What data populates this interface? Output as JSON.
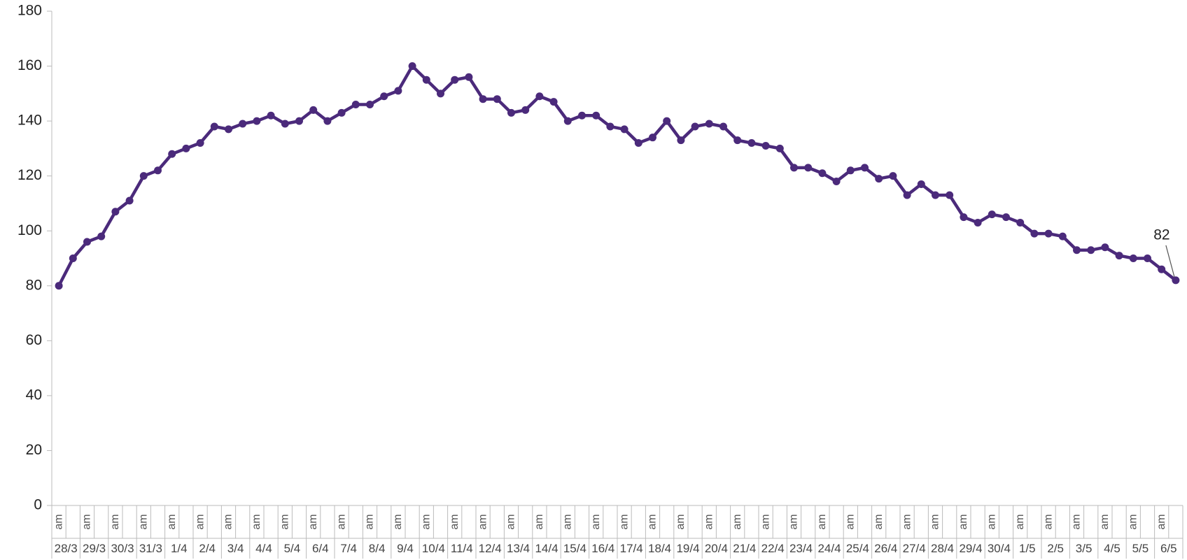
{
  "chart_data": {
    "type": "line",
    "categories": [
      "am",
      null,
      "am",
      null,
      "am",
      null,
      "am",
      null,
      "am",
      null,
      "am",
      null,
      "am",
      null,
      "am",
      null,
      "am",
      null,
      "am",
      null,
      "am",
      null,
      "am",
      null,
      "am",
      null,
      "am",
      null,
      "am",
      null,
      "am",
      null,
      "am",
      null,
      "am",
      null,
      "am",
      null,
      "am",
      null,
      "am",
      null,
      "am",
      null,
      "am",
      null,
      "am",
      null,
      "am",
      null,
      "am",
      null,
      "am",
      null,
      "am",
      null,
      "am",
      null,
      "am",
      null,
      "am",
      null,
      "am",
      null,
      "am",
      null,
      "am",
      null,
      "am",
      null,
      "am",
      null,
      "am",
      null,
      "am",
      null,
      "am",
      null,
      "am",
      null
    ],
    "category_groups": [
      "28/3",
      "29/3",
      "30/3",
      "31/3",
      "1/4",
      "2/4",
      "3/4",
      "4/4",
      "5/4",
      "6/4",
      "7/4",
      "8/4",
      "9/4",
      "10/4",
      "11/4",
      "12/4",
      "13/4",
      "14/4",
      "15/4",
      "16/4",
      "17/4",
      "18/4",
      "19/4",
      "20/4",
      "21/4",
      "22/4",
      "23/4",
      "24/4",
      "25/4",
      "26/4",
      "27/4",
      "28/4",
      "29/4",
      "30/4",
      "1/5",
      "2/5",
      "3/5",
      "4/5",
      "5/5",
      "6/5"
    ],
    "color": "#4b2a7b",
    "values": [
      80,
      90,
      96,
      98,
      107,
      111,
      120,
      122,
      128,
      130,
      132,
      138,
      137,
      139,
      140,
      142,
      139,
      140,
      144,
      140,
      143,
      146,
      146,
      149,
      151,
      160,
      155,
      150,
      155,
      156,
      148,
      148,
      143,
      144,
      149,
      147,
      140,
      142,
      142,
      138,
      137,
      132,
      134,
      140,
      133,
      138,
      139,
      138,
      133,
      132,
      131,
      130,
      123,
      123,
      121,
      118,
      122,
      123,
      119,
      120,
      113,
      117,
      113,
      113,
      105,
      103,
      106,
      105,
      103,
      99,
      99,
      98,
      93,
      93,
      94,
      91,
      90,
      90,
      86,
      82
    ],
    "labeled_point": 79,
    "ylim": [
      0,
      180
    ],
    "yticks": [
      0,
      20,
      40,
      60,
      80,
      100,
      120,
      140,
      160,
      180
    ],
    "grid": false
  }
}
